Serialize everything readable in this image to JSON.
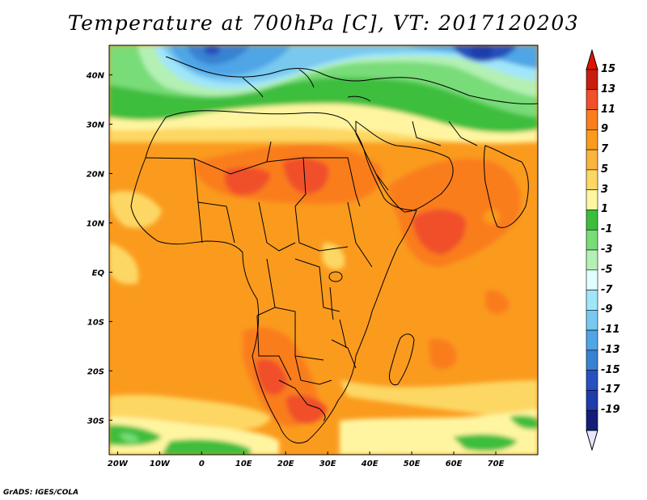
{
  "title": "Temperature at 700hPa [C], VT: 2017120203",
  "credit": "GrADS: IGES/COLA",
  "map": {
    "variable": "Temperature",
    "level": "700hPa",
    "units": "C",
    "valid_time": "2017120203",
    "region": "Africa",
    "lon_range": [
      -22,
      80
    ],
    "lat_range": [
      -37,
      46
    ],
    "lat_ticks": [
      {
        "value": 40,
        "label": "40N"
      },
      {
        "value": 30,
        "label": "30N"
      },
      {
        "value": 20,
        "label": "20N"
      },
      {
        "value": 10,
        "label": "10N"
      },
      {
        "value": 0,
        "label": "EQ"
      },
      {
        "value": -10,
        "label": "10S"
      },
      {
        "value": -20,
        "label": "20S"
      },
      {
        "value": -30,
        "label": "30S"
      }
    ],
    "lon_ticks": [
      {
        "value": -20,
        "label": "20W"
      },
      {
        "value": -10,
        "label": "10W"
      },
      {
        "value": 0,
        "label": "0"
      },
      {
        "value": 10,
        "label": "10E"
      },
      {
        "value": 20,
        "label": "20E"
      },
      {
        "value": 30,
        "label": "30E"
      },
      {
        "value": 40,
        "label": "40E"
      },
      {
        "value": 50,
        "label": "50E"
      },
      {
        "value": 60,
        "label": "60E"
      },
      {
        "value": 70,
        "label": "70E"
      }
    ]
  },
  "colorbar": {
    "levels": [
      {
        "label": "15",
        "color": "#c81e0f"
      },
      {
        "label": "13",
        "color": "#f0502a"
      },
      {
        "label": "11",
        "color": "#fa7d1e"
      },
      {
        "label": "9",
        "color": "#fa9b1e"
      },
      {
        "label": "7",
        "color": "#fbb43c"
      },
      {
        "label": "5",
        "color": "#fdd764"
      },
      {
        "label": "3",
        "color": "#fff5a0"
      },
      {
        "label": "1",
        "color": "#3cbe3c"
      },
      {
        "label": "-1",
        "color": "#78dc78"
      },
      {
        "label": "-3",
        "color": "#b4f0b4"
      },
      {
        "label": "-5",
        "color": "#e1ffff"
      },
      {
        "label": "-7",
        "color": "#a0e6fa"
      },
      {
        "label": "-9",
        "color": "#78c8f0"
      },
      {
        "label": "-11",
        "color": "#50a5e6"
      },
      {
        "label": "-13",
        "color": "#3782d2"
      },
      {
        "label": "-15",
        "color": "#2850be"
      },
      {
        "label": "-17",
        "color": "#1e3caa"
      },
      {
        "label": "-19",
        "color": "#141e78"
      }
    ],
    "top_arrow_color": "#e11400",
    "bottom_arrow_color": "#e6e6ff"
  }
}
